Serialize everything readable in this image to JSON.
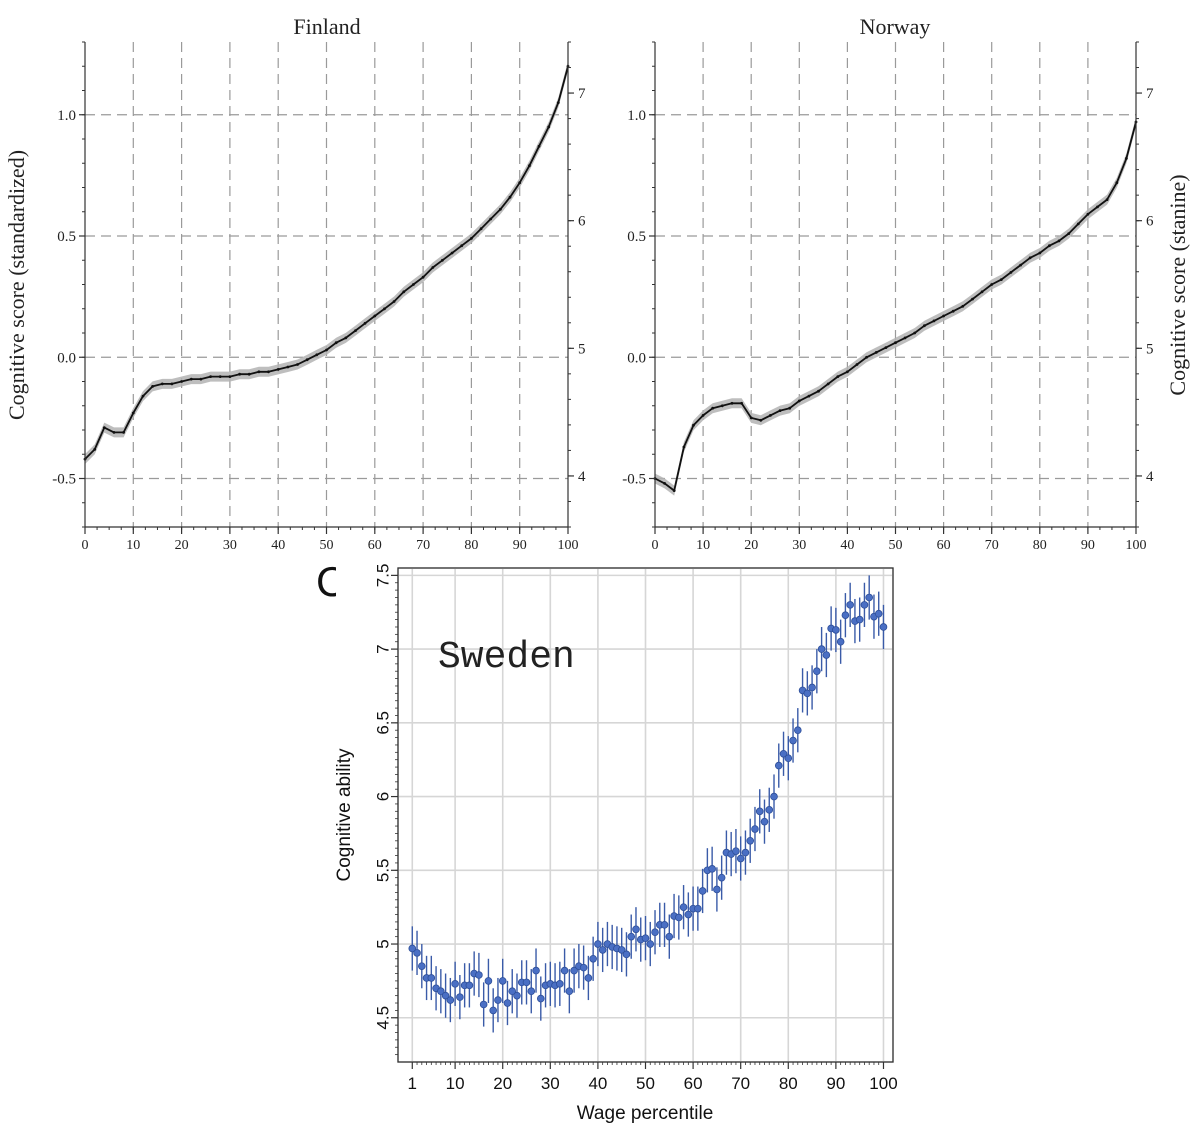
{
  "figure": {
    "panel_letter": "C"
  },
  "chart_data": [
    {
      "type": "line",
      "title": "Finland",
      "xlabel": "",
      "ylabel": "Cognitive score (standardized)",
      "y2label": "",
      "xlim": [
        0,
        100
      ],
      "ylim": [
        -0.7,
        1.3
      ],
      "y2lim": [
        3.6,
        7.4
      ],
      "x_ticks": [
        "0",
        "10",
        "20",
        "30",
        "40",
        "50",
        "60",
        "70",
        "80",
        "90",
        "100"
      ],
      "y_ticks": [
        "-0.5",
        "0.0",
        "0.5",
        "1.0"
      ],
      "y2_ticks": [
        "4",
        "5",
        "6",
        "7"
      ],
      "grid": true,
      "confidence_band": true,
      "series": [
        {
          "x": [
            0,
            2,
            4,
            6,
            8,
            10,
            12,
            14,
            16,
            18,
            20,
            22,
            24,
            26,
            28,
            30,
            32,
            34,
            36,
            38,
            40,
            42,
            44,
            46,
            48,
            50,
            52,
            54,
            56,
            58,
            60,
            62,
            64,
            66,
            68,
            70,
            72,
            74,
            76,
            78,
            80,
            82,
            84,
            86,
            88,
            90,
            92,
            94,
            96,
            98,
            100
          ],
          "values": [
            -0.42,
            -0.38,
            -0.29,
            -0.31,
            -0.31,
            -0.23,
            -0.16,
            -0.12,
            -0.11,
            -0.11,
            -0.1,
            -0.09,
            -0.09,
            -0.08,
            -0.08,
            -0.08,
            -0.07,
            -0.07,
            -0.06,
            -0.06,
            -0.05,
            -0.04,
            -0.03,
            -0.01,
            0.01,
            0.03,
            0.06,
            0.08,
            0.11,
            0.14,
            0.17,
            0.2,
            0.23,
            0.27,
            0.3,
            0.33,
            0.37,
            0.4,
            0.43,
            0.46,
            0.49,
            0.53,
            0.57,
            0.61,
            0.66,
            0.72,
            0.79,
            0.87,
            0.95,
            1.05,
            1.2
          ]
        }
      ]
    },
    {
      "type": "line",
      "title": "Norway",
      "xlabel": "",
      "ylabel": "",
      "y2label": "Cognitive score (stanine)",
      "xlim": [
        0,
        100
      ],
      "ylim": [
        -0.7,
        1.3
      ],
      "y2lim": [
        3.6,
        7.4
      ],
      "x_ticks": [
        "0",
        "10",
        "20",
        "30",
        "40",
        "50",
        "60",
        "70",
        "80",
        "90",
        "100"
      ],
      "y_ticks": [
        "-0.5",
        "0.0",
        "0.5",
        "1.0"
      ],
      "y2_ticks": [
        "4",
        "5",
        "6",
        "7"
      ],
      "grid": true,
      "confidence_band": true,
      "series": [
        {
          "x": [
            0,
            2,
            4,
            6,
            8,
            10,
            12,
            14,
            16,
            18,
            20,
            22,
            24,
            26,
            28,
            30,
            32,
            34,
            36,
            38,
            40,
            42,
            44,
            46,
            48,
            50,
            52,
            54,
            56,
            58,
            60,
            62,
            64,
            66,
            68,
            70,
            72,
            74,
            76,
            78,
            80,
            82,
            84,
            86,
            88,
            90,
            92,
            94,
            96,
            98,
            100
          ],
          "values": [
            -0.5,
            -0.52,
            -0.55,
            -0.37,
            -0.28,
            -0.24,
            -0.21,
            -0.2,
            -0.19,
            -0.19,
            -0.25,
            -0.26,
            -0.24,
            -0.22,
            -0.21,
            -0.18,
            -0.16,
            -0.14,
            -0.11,
            -0.08,
            -0.06,
            -0.03,
            0.0,
            0.02,
            0.04,
            0.06,
            0.08,
            0.1,
            0.13,
            0.15,
            0.17,
            0.19,
            0.21,
            0.24,
            0.27,
            0.3,
            0.32,
            0.35,
            0.38,
            0.41,
            0.43,
            0.46,
            0.48,
            0.51,
            0.55,
            0.59,
            0.62,
            0.65,
            0.72,
            0.82,
            0.97
          ]
        }
      ]
    },
    {
      "type": "scatter",
      "title": "Sweden",
      "xlabel": "Wage percentile",
      "ylabel": "Cognitive ability",
      "xlim": [
        -2,
        102
      ],
      "ylim": [
        4.2,
        7.55
      ],
      "x_ticks": [
        "1",
        "10",
        "20",
        "30",
        "40",
        "50",
        "60",
        "70",
        "80",
        "90",
        "100"
      ],
      "y_ticks": [
        "4.5",
        "5",
        "5.5",
        "6",
        "6.5",
        "7",
        "7.5"
      ],
      "grid": true,
      "error_bars": true,
      "series": [
        {
          "x": [
            1,
            2,
            3,
            4,
            5,
            6,
            7,
            8,
            9,
            10,
            11,
            12,
            13,
            14,
            15,
            16,
            17,
            18,
            19,
            20,
            21,
            22,
            23,
            24,
            25,
            26,
            27,
            28,
            29,
            30,
            31,
            32,
            33,
            34,
            35,
            36,
            37,
            38,
            39,
            40,
            41,
            42,
            43,
            44,
            45,
            46,
            47,
            48,
            49,
            50,
            51,
            52,
            53,
            54,
            55,
            56,
            57,
            58,
            59,
            60,
            61,
            62,
            63,
            64,
            65,
            66,
            67,
            68,
            69,
            70,
            71,
            72,
            73,
            74,
            75,
            76,
            77,
            78,
            79,
            80,
            81,
            82,
            83,
            84,
            85,
            86,
            87,
            88,
            89,
            90,
            91,
            92,
            93,
            94,
            95,
            96,
            97,
            98,
            99,
            100
          ],
          "values": [
            4.97,
            4.94,
            4.85,
            4.77,
            4.77,
            4.7,
            4.68,
            4.65,
            4.62,
            4.73,
            4.64,
            4.72,
            4.72,
            4.8,
            4.79,
            4.59,
            4.75,
            4.55,
            4.62,
            4.75,
            4.6,
            4.68,
            4.65,
            4.74,
            4.74,
            4.68,
            4.82,
            4.63,
            4.72,
            4.73,
            4.72,
            4.73,
            4.82,
            4.68,
            4.82,
            4.85,
            4.84,
            4.77,
            4.9,
            5.0,
            4.96,
            5.0,
            4.98,
            4.97,
            4.96,
            4.93,
            5.05,
            5.1,
            5.03,
            5.04,
            5.0,
            5.08,
            5.13,
            5.13,
            5.05,
            5.19,
            5.18,
            5.25,
            5.2,
            5.24,
            5.24,
            5.36,
            5.5,
            5.51,
            5.37,
            5.45,
            5.62,
            5.61,
            5.63,
            5.58,
            5.62,
            5.7,
            5.78,
            5.9,
            5.83,
            5.91,
            6.0,
            6.21,
            6.29,
            6.26,
            6.38,
            6.45,
            6.72,
            6.7,
            6.74,
            6.85,
            7.0,
            6.96,
            7.14,
            7.13,
            7.05,
            7.23,
            7.3,
            7.19,
            7.2,
            7.3,
            7.35,
            7.22,
            7.24,
            7.15
          ],
          "err": 0.15
        }
      ]
    }
  ]
}
